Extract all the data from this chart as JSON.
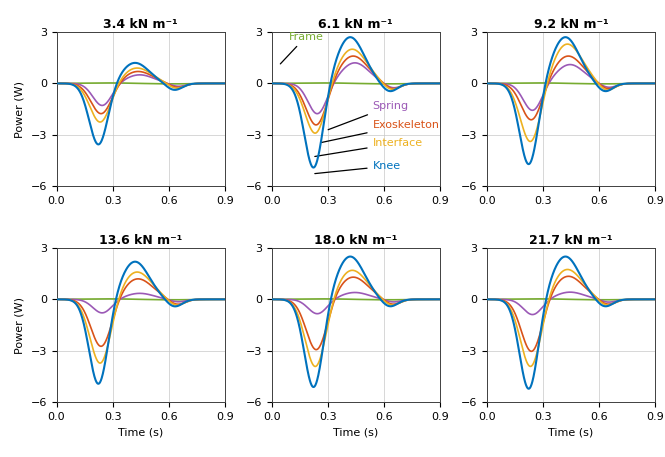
{
  "titles": [
    "3.4 kN m⁻¹",
    "6.1 kN m⁻¹",
    "9.2 kN m⁻¹",
    "13.6 kN m⁻¹",
    "18.0 kN m⁻¹",
    "21.7 kN m⁻¹"
  ],
  "xlabel": "Time (s)",
  "ylabel": "Power (W)",
  "xlim": [
    0,
    0.9
  ],
  "ylim": [
    -6,
    3
  ],
  "yticks": [
    -6,
    -3,
    0,
    3
  ],
  "xticks": [
    0,
    0.3,
    0.6,
    0.9
  ],
  "colors": {
    "Frame": "#77ac30",
    "Spring": "#9b59b6",
    "Exoskeleton": "#d95319",
    "Interface": "#edb120",
    "Knee": "#0072bd"
  },
  "cond_params": {
    "3.4": {
      "knee": [
        -3.6,
        1.2,
        -0.4
      ],
      "iface": [
        -2.3,
        0.9,
        -0.3
      ],
      "exo": [
        -1.8,
        0.7,
        -0.25
      ],
      "spr": [
        -1.3,
        0.5,
        -0.18
      ],
      "frm": [
        0.0,
        0.0,
        0.0
      ]
    },
    "6.1": {
      "knee": [
        -5.0,
        2.7,
        -0.5
      ],
      "iface": [
        -3.0,
        2.0,
        -0.4
      ],
      "exo": [
        -2.5,
        1.6,
        -0.35
      ],
      "spr": [
        -1.8,
        1.2,
        -0.28
      ],
      "frm": [
        0.0,
        0.0,
        0.0
      ]
    },
    "9.2": {
      "knee": [
        -4.8,
        2.7,
        -0.5
      ],
      "iface": [
        -3.5,
        2.3,
        -0.45
      ],
      "exo": [
        -2.2,
        1.6,
        -0.35
      ],
      "spr": [
        -1.6,
        1.1,
        -0.25
      ],
      "frm": [
        0.0,
        0.0,
        0.0
      ]
    },
    "13.6": {
      "knee": [
        -5.0,
        2.2,
        -0.45
      ],
      "iface": [
        -3.8,
        1.6,
        -0.38
      ],
      "exo": [
        -2.8,
        1.2,
        -0.32
      ],
      "spr": [
        -0.8,
        0.35,
        -0.15
      ],
      "frm": [
        0.0,
        0.0,
        0.0
      ]
    },
    "18.0": {
      "knee": [
        -5.2,
        2.5,
        -0.45
      ],
      "iface": [
        -4.0,
        1.7,
        -0.38
      ],
      "exo": [
        -3.0,
        1.3,
        -0.32
      ],
      "spr": [
        -0.85,
        0.4,
        -0.16
      ],
      "frm": [
        0.0,
        0.0,
        0.0
      ]
    },
    "21.7": {
      "knee": [
        -5.3,
        2.5,
        -0.45
      ],
      "iface": [
        -4.0,
        1.75,
        -0.38
      ],
      "exo": [
        -3.1,
        1.35,
        -0.32
      ],
      "spr": [
        -0.9,
        0.42,
        -0.17
      ],
      "frm": [
        0.0,
        0.0,
        0.0
      ]
    }
  }
}
